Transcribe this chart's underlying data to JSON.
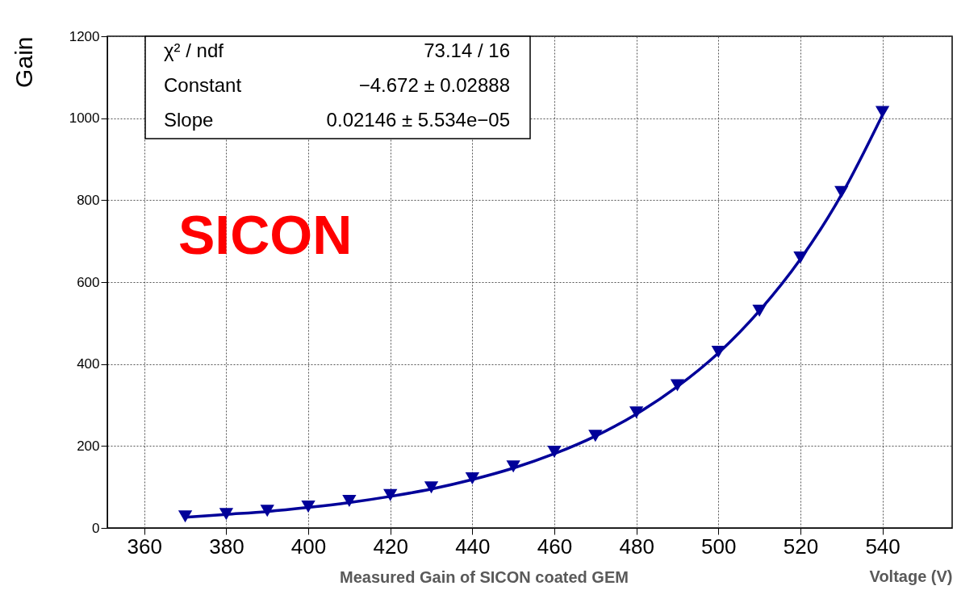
{
  "chart_data": {
    "type": "scatter",
    "xlabel": "Voltage (V)",
    "ylabel": "Gain",
    "x": [
      370,
      380,
      390,
      400,
      410,
      420,
      430,
      440,
      450,
      460,
      470,
      480,
      490,
      500,
      510,
      520,
      530,
      540
    ],
    "series": [
      {
        "color": "#000099",
        "values": [
          28,
          34,
          42,
          52,
          66,
          80,
          99,
          121,
          150,
          186,
          225,
          282,
          348,
          430,
          530,
          660,
          820,
          1015
        ]
      },
      {
        "type": "line",
        "marker": "none",
        "color": "#000099",
        "x": [
          370,
          380,
          390,
          400,
          410,
          420,
          430,
          440,
          450,
          460,
          470,
          480,
          490,
          500,
          510,
          520,
          530,
          540
        ],
        "values": [
          26,
          33,
          40,
          50,
          62,
          77,
          95,
          118,
          146,
          181,
          224,
          278,
          345,
          427,
          530,
          656,
          813,
          1008
        ]
      }
    ],
    "xlim": [
      351,
      557
    ],
    "xticks": [
      360,
      380,
      400,
      420,
      440,
      460,
      480,
      500,
      520,
      540
    ],
    "ylim": [
      0,
      1200
    ],
    "yticks": [
      0,
      200,
      400,
      600,
      800,
      1000,
      1200
    ],
    "grid": true,
    "marker": "triangle",
    "line_style": "solid",
    "annotations": [
      "χ² / ndf",
      "73.14 / 16",
      "Constant",
      "−4.672 ± 0.02888",
      "Slope",
      "0.02146 ± 5.534e−05",
      "SICON",
      "Measured Gain of SICON coated GEM"
    ]
  }
}
